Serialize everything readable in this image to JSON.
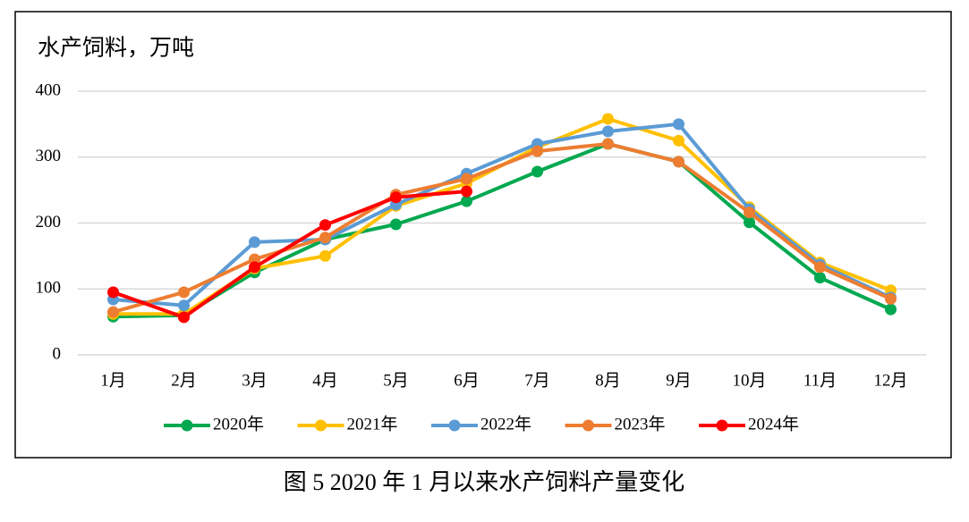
{
  "chart_data": {
    "type": "line",
    "ylabel": "水产饲料，万吨",
    "caption": "图 5  2020 年 1 月以来水产饲料产量变化",
    "categories": [
      "1月",
      "2月",
      "3月",
      "4月",
      "5月",
      "6月",
      "7月",
      "8月",
      "9月",
      "10月",
      "11月",
      "12月"
    ],
    "series": [
      {
        "name": "2020年",
        "color": "#00a84f",
        "values": [
          58,
          60,
          125,
          175,
          198,
          233,
          278,
          320,
          293,
          201,
          117,
          69
        ]
      },
      {
        "name": "2021年",
        "color": "#ffc000",
        "values": [
          62,
          62,
          131,
          150,
          226,
          260,
          315,
          358,
          325,
          224,
          140,
          98
        ]
      },
      {
        "name": "2022年",
        "color": "#5b9bd5",
        "values": [
          84,
          75,
          171,
          175,
          228,
          275,
          320,
          339,
          350,
          221,
          137,
          87
        ]
      },
      {
        "name": "2023年",
        "color": "#ed7d31",
        "values": [
          65,
          95,
          145,
          178,
          243,
          267,
          309,
          320,
          293,
          216,
          133,
          85
        ]
      },
      {
        "name": "2024年",
        "color": "#ff0000",
        "values": [
          95,
          57,
          133,
          197,
          239,
          248,
          null,
          null,
          null,
          null,
          null,
          null
        ]
      }
    ],
    "ylim": [
      0,
      400
    ],
    "yticks": [
      0,
      100,
      200,
      300,
      400
    ],
    "grid": true,
    "legend": "bottom"
  }
}
